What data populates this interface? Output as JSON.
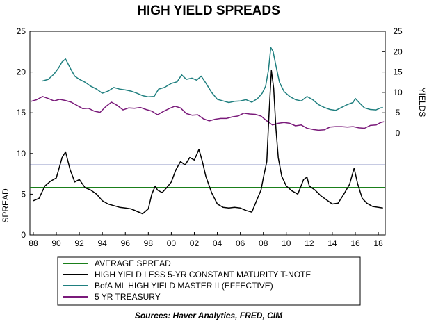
{
  "chart_data": {
    "type": "line",
    "title": "HIGH YIELD SPREADS",
    "source": "Sources:  Haver Analytics, FRED, CIM",
    "left_axis": {
      "label": "SPREAD",
      "range": [
        0,
        25
      ],
      "ticks": [
        "0",
        "5",
        "10",
        "15",
        "20",
        "25"
      ]
    },
    "right_axis": {
      "label": "YIELDS",
      "range": [
        -25,
        25
      ],
      "ticks": [
        "0",
        "5",
        "10",
        "15",
        "20",
        "25"
      ]
    },
    "x_axis": {
      "range": [
        1987.7,
        2018.6
      ],
      "ticks": [
        "88",
        "90",
        "92",
        "94",
        "96",
        "98",
        "00",
        "02",
        "04",
        "06",
        "08",
        "10",
        "12",
        "14",
        "16",
        "18"
      ]
    },
    "grid": false,
    "legend_position": "bottom",
    "reference_lines": [
      {
        "name": "",
        "value": 8.6,
        "color": "#1c2a8a"
      },
      {
        "name": "AVERAGE SPREAD",
        "value": 5.8,
        "color": "#1a7f1a"
      },
      {
        "name": "",
        "value": 3.2,
        "color": "#d03030"
      }
    ],
    "series": [
      {
        "name": "HIGH YIELD LESS 5-YR CONSTANT MATURITY T-NOTE",
        "axis": "left",
        "color": "#000000",
        "x": [
          1988.0,
          1988.5,
          1989.0,
          1989.5,
          1990.0,
          1990.5,
          1990.8,
          1991.2,
          1991.6,
          1992.0,
          1992.5,
          1993.0,
          1993.5,
          1994.0,
          1994.5,
          1995.0,
          1995.5,
          1996.0,
          1996.5,
          1997.0,
          1997.5,
          1998.0,
          1998.3,
          1998.6,
          1998.8,
          1999.2,
          1999.6,
          2000.0,
          2000.4,
          2000.8,
          2001.2,
          2001.6,
          2002.0,
          2002.4,
          2002.7,
          2003.0,
          2003.5,
          2004.0,
          2004.5,
          2005.0,
          2005.5,
          2006.0,
          2006.5,
          2007.0,
          2007.5,
          2007.8,
          2008.0,
          2008.3,
          2008.5,
          2008.7,
          2008.9,
          2009.1,
          2009.3,
          2009.6,
          2010.0,
          2010.5,
          2011.0,
          2011.5,
          2011.8,
          2012.0,
          2012.5,
          2013.0,
          2013.5,
          2014.0,
          2014.5,
          2015.0,
          2015.5,
          2015.9,
          2016.2,
          2016.6,
          2017.0,
          2017.5,
          2018.0,
          2018.4
        ],
        "values": [
          4.2,
          4.5,
          6.0,
          6.6,
          7.0,
          9.5,
          10.2,
          8.0,
          6.5,
          6.8,
          5.8,
          5.5,
          5.0,
          4.2,
          3.8,
          3.6,
          3.4,
          3.3,
          3.2,
          2.9,
          2.6,
          3.2,
          5.0,
          6.0,
          5.5,
          5.2,
          5.8,
          6.5,
          8.0,
          9.0,
          8.6,
          9.5,
          9.2,
          10.5,
          9.0,
          7.2,
          5.2,
          3.8,
          3.4,
          3.3,
          3.4,
          3.3,
          3.0,
          2.8,
          4.5,
          5.5,
          7.0,
          9.0,
          15.0,
          20.2,
          18.0,
          13.0,
          9.5,
          7.2,
          6.0,
          5.4,
          5.0,
          6.8,
          7.1,
          6.0,
          5.5,
          4.8,
          4.3,
          3.8,
          3.9,
          5.0,
          6.2,
          8.2,
          6.3,
          4.5,
          3.9,
          3.5,
          3.4,
          3.3
        ]
      },
      {
        "name": "BofA ML HIGH YIELD MASTER II (EFFECTIVE)",
        "axis": "right",
        "color": "#1f7f7f",
        "x": [
          1988.8,
          1989.3,
          1989.8,
          1990.2,
          1990.5,
          1990.8,
          1991.2,
          1991.6,
          1992.0,
          1992.5,
          1993.0,
          1993.5,
          1994.0,
          1994.5,
          1995.0,
          1995.5,
          1996.0,
          1996.5,
          1997.0,
          1997.5,
          1998.0,
          1998.5,
          1998.9,
          1999.4,
          2000.0,
          2000.5,
          2000.9,
          2001.3,
          2001.8,
          2002.2,
          2002.6,
          2003.0,
          2003.5,
          2004.0,
          2004.5,
          2005.0,
          2005.5,
          2006.0,
          2006.5,
          2007.0,
          2007.5,
          2007.9,
          2008.2,
          2008.45,
          2008.65,
          2008.85,
          2009.1,
          2009.4,
          2009.8,
          2010.3,
          2010.8,
          2011.3,
          2011.8,
          2012.3,
          2012.8,
          2013.3,
          2013.8,
          2014.3,
          2014.8,
          2015.3,
          2015.8,
          2016.0,
          2016.4,
          2016.8,
          2017.3,
          2017.8,
          2018.2,
          2018.4
        ],
        "values": [
          12.8,
          13.2,
          14.5,
          16.0,
          17.5,
          18.2,
          16.0,
          14.0,
          13.2,
          12.5,
          11.5,
          10.8,
          9.8,
          10.3,
          11.2,
          10.8,
          10.6,
          10.3,
          9.8,
          9.2,
          8.9,
          9.0,
          10.8,
          11.2,
          12.2,
          12.6,
          14.3,
          13.2,
          13.5,
          13.0,
          14.0,
          12.3,
          10.0,
          8.3,
          7.9,
          7.5,
          7.8,
          7.9,
          8.2,
          7.6,
          8.5,
          9.8,
          11.5,
          15.5,
          21.0,
          20.0,
          16.5,
          12.5,
          10.2,
          9.0,
          8.2,
          7.9,
          9.0,
          8.2,
          7.0,
          6.3,
          5.8,
          5.6,
          6.3,
          7.0,
          7.5,
          8.5,
          7.3,
          6.2,
          5.8,
          5.7,
          6.2,
          6.3
        ]
      },
      {
        "name": "5 YR TREASURY",
        "axis": "right",
        "color": "#7a1a7a",
        "x": [
          1987.8,
          1988.3,
          1988.8,
          1989.3,
          1989.8,
          1990.3,
          1990.8,
          1991.3,
          1991.8,
          1992.3,
          1992.8,
          1993.3,
          1993.8,
          1994.3,
          1994.8,
          1995.3,
          1995.8,
          1996.3,
          1996.8,
          1997.3,
          1997.8,
          1998.3,
          1998.8,
          1999.3,
          1999.8,
          2000.3,
          2000.8,
          2001.3,
          2001.8,
          2002.3,
          2002.8,
          2003.3,
          2003.8,
          2004.3,
          2004.8,
          2005.3,
          2005.8,
          2006.3,
          2006.8,
          2007.3,
          2007.8,
          2008.3,
          2008.8,
          2009.3,
          2009.8,
          2010.3,
          2010.8,
          2011.3,
          2011.8,
          2012.3,
          2012.8,
          2013.3,
          2013.8,
          2014.3,
          2014.8,
          2015.3,
          2015.8,
          2016.3,
          2016.8,
          2017.3,
          2017.8,
          2018.2,
          2018.5
        ],
        "values": [
          7.8,
          8.2,
          9.0,
          8.5,
          7.9,
          8.3,
          8.0,
          7.6,
          6.8,
          6.0,
          6.1,
          5.4,
          5.1,
          6.5,
          7.6,
          6.8,
          5.7,
          6.2,
          6.1,
          6.3,
          5.8,
          5.4,
          4.5,
          5.3,
          6.0,
          6.6,
          6.2,
          4.8,
          4.4,
          4.5,
          3.5,
          3.0,
          3.4,
          3.6,
          3.6,
          4.0,
          4.2,
          4.9,
          4.7,
          4.6,
          4.2,
          3.0,
          2.0,
          2.4,
          2.6,
          2.4,
          1.8,
          2.0,
          1.2,
          0.9,
          0.7,
          0.8,
          1.5,
          1.6,
          1.6,
          1.5,
          1.6,
          1.3,
          1.2,
          1.9,
          2.0,
          2.6,
          2.8
        ]
      }
    ]
  },
  "legend": {
    "items": [
      {
        "label": "AVERAGE SPREAD",
        "color": "#1a7f1a"
      },
      {
        "label": "HIGH YIELD LESS 5-YR CONSTANT MATURITY T-NOTE",
        "color": "#000000"
      },
      {
        "label": "BofA ML HIGH YIELD MASTER II (EFFECTIVE)",
        "color": "#1f7f7f"
      },
      {
        "label": "5 YR TREASURY",
        "color": "#7a1a7a"
      }
    ]
  }
}
